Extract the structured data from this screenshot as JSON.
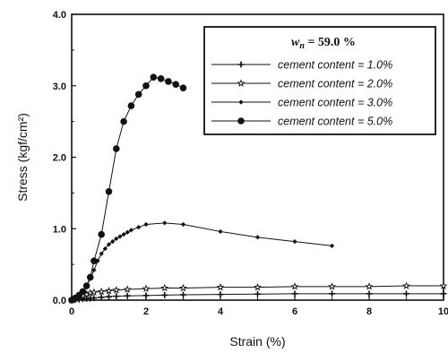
{
  "chart_data": {
    "type": "line",
    "title": "",
    "xlabel": "Strain (%)",
    "ylabel": "Stress (kgf/cm²)",
    "xlim": [
      0,
      10
    ],
    "ylim": [
      0,
      4.0
    ],
    "xticks": [
      0,
      2,
      4,
      6,
      8,
      10
    ],
    "xtick_labels": [
      "0",
      "2",
      "4",
      "6",
      "8",
      "10"
    ],
    "yticks": [
      0,
      1.0,
      2.0,
      3.0,
      4.0
    ],
    "ytick_labels": [
      "0.0",
      "1.0",
      "2.0",
      "3.0",
      "4.0"
    ],
    "grid": false,
    "legend": {
      "position": "top-right",
      "title_prefix": "w",
      "title_sub": "n",
      "title_suffix": " = 59.0 %"
    },
    "series": [
      {
        "name": "cement content = 1.0%",
        "marker": "plus",
        "x": [
          0,
          0.1,
          0.2,
          0.3,
          0.4,
          0.5,
          0.6,
          0.8,
          1.0,
          1.2,
          1.5,
          2.0,
          2.5,
          3.0,
          4.0,
          5.0,
          6.0,
          7.0,
          8.0,
          9.0,
          10.0
        ],
        "y": [
          0,
          0.005,
          0.01,
          0.015,
          0.02,
          0.025,
          0.03,
          0.04,
          0.05,
          0.055,
          0.06,
          0.065,
          0.07,
          0.075,
          0.08,
          0.085,
          0.09,
          0.09,
          0.09,
          0.09,
          0.09
        ]
      },
      {
        "name": "cement content = 2.0%",
        "marker": "star",
        "x": [
          0,
          0.1,
          0.2,
          0.3,
          0.4,
          0.5,
          0.6,
          0.8,
          1.0,
          1.2,
          1.5,
          2.0,
          2.5,
          3.0,
          4.0,
          5.0,
          6.0,
          7.0,
          8.0,
          9.0,
          10.0
        ],
        "y": [
          0,
          0.02,
          0.04,
          0.06,
          0.08,
          0.1,
          0.11,
          0.12,
          0.13,
          0.14,
          0.15,
          0.16,
          0.17,
          0.17,
          0.18,
          0.18,
          0.19,
          0.19,
          0.19,
          0.2,
          0.2
        ]
      },
      {
        "name": "cement content = 3.0%",
        "marker": "diamond",
        "x": [
          0,
          0.1,
          0.2,
          0.3,
          0.4,
          0.5,
          0.6,
          0.7,
          0.8,
          0.9,
          1.0,
          1.1,
          1.2,
          1.3,
          1.4,
          1.5,
          1.6,
          1.8,
          2.0,
          2.5,
          3.0,
          4.0,
          5.0,
          6.0,
          7.0
        ],
        "y": [
          0,
          0.03,
          0.07,
          0.12,
          0.2,
          0.3,
          0.42,
          0.55,
          0.65,
          0.72,
          0.78,
          0.82,
          0.86,
          0.89,
          0.92,
          0.95,
          0.98,
          1.02,
          1.06,
          1.08,
          1.06,
          0.96,
          0.88,
          0.82,
          0.76
        ]
      },
      {
        "name": "cement content = 5.0%",
        "marker": "circle",
        "x": [
          0,
          0.1,
          0.2,
          0.3,
          0.4,
          0.5,
          0.6,
          0.8,
          1.0,
          1.2,
          1.4,
          1.6,
          1.8,
          2.0,
          2.2,
          2.4,
          2.6,
          2.8,
          3.0
        ],
        "y": [
          0,
          0.03,
          0.07,
          0.12,
          0.2,
          0.32,
          0.55,
          0.92,
          1.52,
          2.12,
          2.5,
          2.72,
          2.88,
          3.0,
          3.12,
          3.1,
          3.06,
          3.02,
          2.97
        ]
      }
    ]
  }
}
